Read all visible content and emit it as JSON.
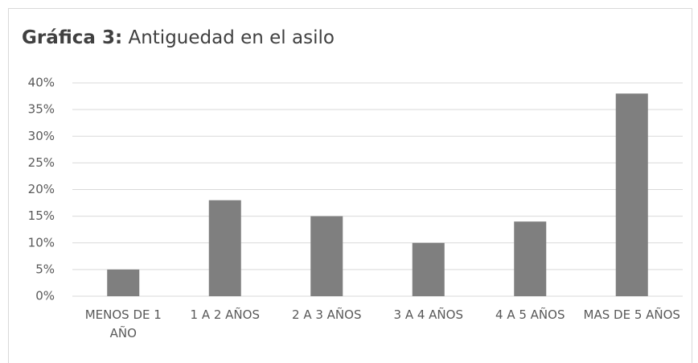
{
  "chart_data": {
    "type": "bar",
    "title_label": "Gráfica 3:",
    "title": "Antiguedad en el asilo",
    "categories": [
      "MENOS DE 1 AÑO",
      "1 A 2 AÑOS",
      "2 A 3 AÑOS",
      "3 A 4 AÑOS",
      "4 A 5 AÑOS",
      "MAS DE 5 AÑOS"
    ],
    "values": [
      5,
      18,
      15,
      10,
      14,
      38
    ],
    "color": "#7f7f7f",
    "ylim": [
      0,
      40
    ],
    "yticks": [
      {
        "value": 0,
        "label": "0%"
      },
      {
        "value": 5,
        "label": "5%"
      },
      {
        "value": 10,
        "label": "10%"
      },
      {
        "value": 15,
        "label": "15%"
      },
      {
        "value": 20,
        "label": "20%"
      },
      {
        "value": 25,
        "label": "25%"
      },
      {
        "value": 30,
        "label": "30%"
      },
      {
        "value": 35,
        "label": "35%"
      },
      {
        "value": 40,
        "label": "40%"
      }
    ],
    "grid": true
  }
}
